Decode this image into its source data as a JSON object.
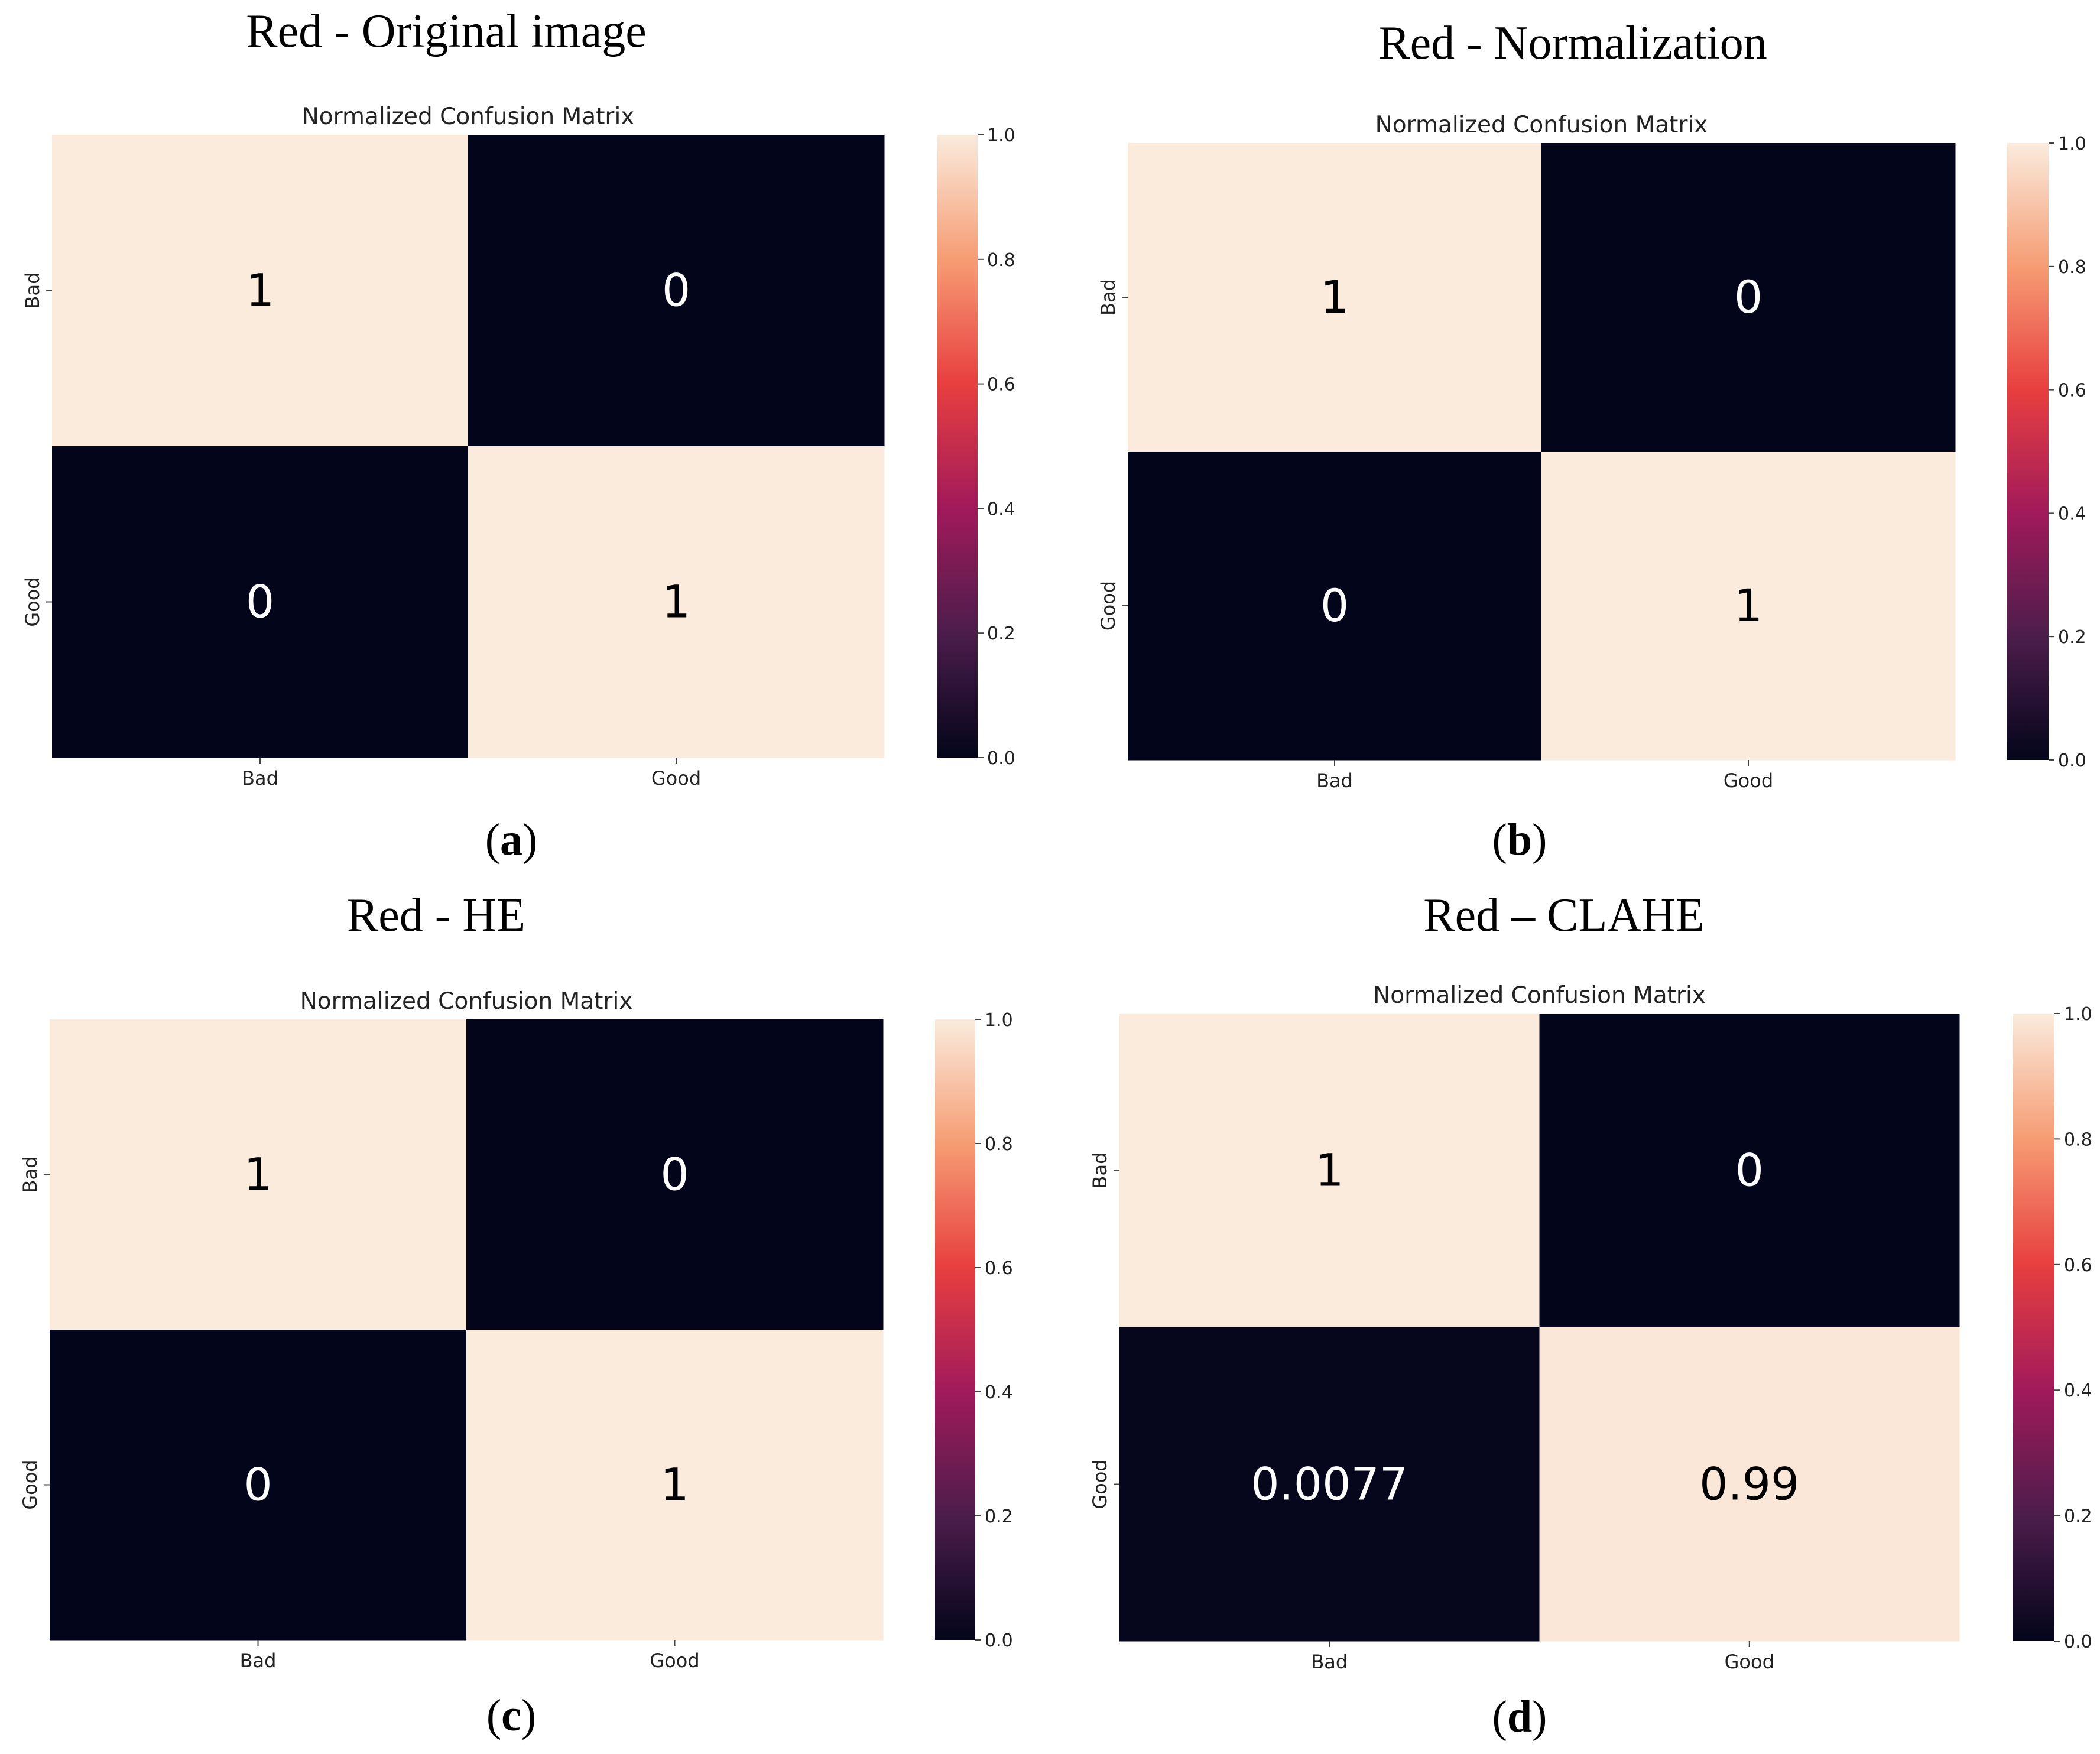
{
  "colors": {
    "high": "#faebdd",
    "low": "#03051a",
    "cmap_stops": [
      "#03051a",
      "#4c1d4b",
      "#a11a5b",
      "#e83f3f",
      "#f69c73",
      "#faebdd"
    ]
  },
  "panels": [
    {
      "title": "Red - Original image",
      "label_letter": "a",
      "chart_title": "Normalized Confusion Matrix"
    },
    {
      "title": "Red - Normalization",
      "label_letter": "b",
      "chart_title": "Normalized Confusion Matrix"
    },
    {
      "title": "Red - HE",
      "label_letter": "c",
      "chart_title": "Normalized Confusion Matrix"
    },
    {
      "title": "Red – CLAHE",
      "label_letter": "d",
      "chart_title": "Normalized Confusion Matrix"
    }
  ],
  "chart_data": [
    {
      "type": "heatmap",
      "title": "Normalized Confusion Matrix",
      "x_categories": [
        "Bad",
        "Good"
      ],
      "y_categories": [
        "Bad",
        "Good"
      ],
      "values": [
        [
          1,
          0
        ],
        [
          0,
          1
        ]
      ],
      "annotations": [
        [
          "1",
          "0"
        ],
        [
          "0",
          "1"
        ]
      ],
      "colorbar": {
        "range": [
          0.0,
          1.0
        ],
        "ticks": [
          "0.0",
          "0.2",
          "0.4",
          "0.6",
          "0.8",
          "1.0"
        ]
      }
    },
    {
      "type": "heatmap",
      "title": "Normalized Confusion Matrix",
      "x_categories": [
        "Bad",
        "Good"
      ],
      "y_categories": [
        "Bad",
        "Good"
      ],
      "values": [
        [
          1,
          0
        ],
        [
          0,
          1
        ]
      ],
      "annotations": [
        [
          "1",
          "0"
        ],
        [
          "0",
          "1"
        ]
      ],
      "colorbar": {
        "range": [
          0.0,
          1.0
        ],
        "ticks": [
          "0.0",
          "0.2",
          "0.4",
          "0.6",
          "0.8",
          "1.0"
        ]
      }
    },
    {
      "type": "heatmap",
      "title": "Normalized Confusion Matrix",
      "x_categories": [
        "Bad",
        "Good"
      ],
      "y_categories": [
        "Bad",
        "Good"
      ],
      "values": [
        [
          1,
          0
        ],
        [
          0,
          1
        ]
      ],
      "annotations": [
        [
          "1",
          "0"
        ],
        [
          "0",
          "1"
        ]
      ],
      "colorbar": {
        "range": [
          0.0,
          1.0
        ],
        "ticks": [
          "0.0",
          "0.2",
          "0.4",
          "0.6",
          "0.8",
          "1.0"
        ]
      }
    },
    {
      "type": "heatmap",
      "title": "Normalized Confusion Matrix",
      "x_categories": [
        "Bad",
        "Good"
      ],
      "y_categories": [
        "Bad",
        "Good"
      ],
      "values": [
        [
          1,
          0
        ],
        [
          0.0077,
          0.99
        ]
      ],
      "annotations": [
        [
          "1",
          "0"
        ],
        [
          "0.0077",
          "0.99"
        ]
      ],
      "colorbar": {
        "range": [
          0.0,
          1.0
        ],
        "ticks": [
          "0.0",
          "0.2",
          "0.4",
          "0.6",
          "0.8",
          "1.0"
        ]
      }
    }
  ]
}
